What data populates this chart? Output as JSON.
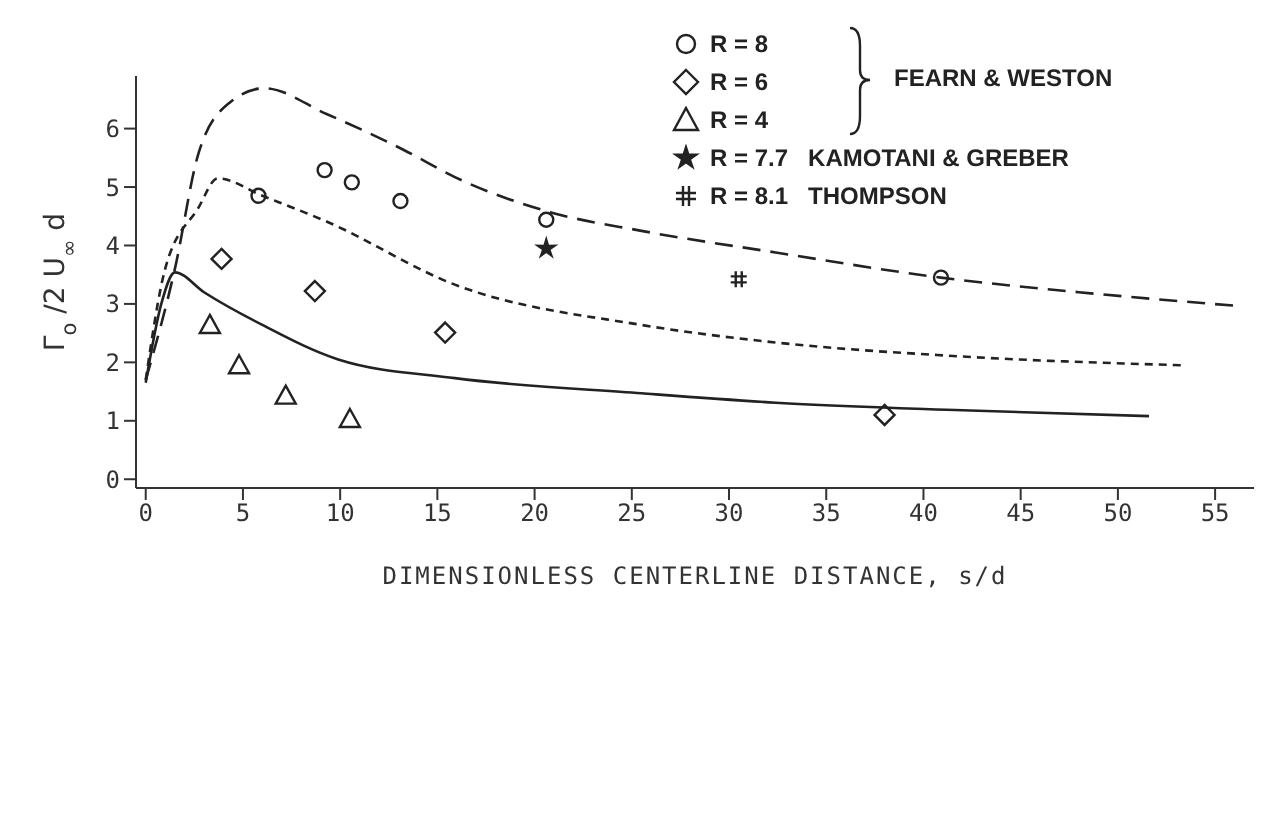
{
  "chart_data": {
    "type": "scatter",
    "xlabel": "DIMENSIONLESS CENTERLINE DISTANCE, s/d",
    "ylabel": "Γ$_{o}$ /2 U$_{∞}$ d",
    "xlim": [
      -0.5,
      57
    ],
    "xticks": [
      0,
      5,
      10,
      15,
      20,
      25,
      30,
      35,
      40,
      45,
      50,
      55
    ],
    "ylim": [
      -0.15,
      6.9
    ],
    "yticks": [
      0,
      1,
      2,
      3,
      4,
      5,
      6
    ],
    "legend": "top right",
    "annotations": [
      "FEARN & WESTON"
    ],
    "series": [
      {
        "name": "R = 8",
        "marker": "circle",
        "color": "#222222",
        "x": [
          5.8,
          9.2,
          10.6,
          13.1,
          20.6,
          40.9
        ],
        "values": [
          4.85,
          5.29,
          5.08,
          4.76,
          4.44,
          3.45
        ]
      },
      {
        "name": "R = 6",
        "marker": "diamond",
        "color": "#222222",
        "x": [
          3.9,
          8.7,
          15.4,
          38.0
        ],
        "values": [
          3.77,
          3.22,
          2.51,
          1.1
        ]
      },
      {
        "name": "R = 4",
        "marker": "triangle",
        "color": "#222222",
        "x": [
          3.3,
          4.8,
          7.2,
          10.5
        ],
        "values": [
          2.64,
          1.95,
          1.43,
          1.03
        ]
      },
      {
        "name": "R = 7.7   KAMOTANI & GREBER",
        "marker": "star",
        "color": "#222222",
        "x": [
          20.6
        ],
        "values": [
          3.95
        ]
      },
      {
        "name": "R = 8.1   THOMPSON",
        "marker": "cross",
        "color": "#222222",
        "x": [
          30.5
        ],
        "values": [
          3.42
        ]
      },
      {
        "type": "line",
        "line_style": "dashed",
        "marker": "none",
        "color": "#222222",
        "x": [
          0,
          1.5,
          2.7,
          4.3,
          6.1,
          9.3,
          13.3,
          15.9,
          20.8,
          25.5,
          32.4,
          40.9,
          48,
          56
        ],
        "values": [
          1.7,
          3.6,
          5.56,
          6.44,
          6.69,
          6.25,
          5.63,
          5.17,
          4.57,
          4.25,
          3.88,
          3.45,
          3.2,
          2.97
        ]
      },
      {
        "type": "line",
        "line_style": "dotted",
        "marker": "none",
        "color": "#222222",
        "x": [
          0,
          1,
          2.7,
          3.7,
          6,
          9.3,
          15.9,
          25.5,
          32.4,
          42,
          53.3
        ],
        "values": [
          1.7,
          3.6,
          4.64,
          5.15,
          4.85,
          4.41,
          3.33,
          2.64,
          2.34,
          2.1,
          1.95
        ]
      },
      {
        "type": "line",
        "line_style": "solid",
        "marker": "none",
        "color": "#222222",
        "x": [
          0,
          0.8,
          1.5,
          3,
          6,
          9.9,
          15.9,
          25.5,
          32.4,
          42,
          51.6
        ],
        "values": [
          1.65,
          3.0,
          3.54,
          3.2,
          2.64,
          2.05,
          1.73,
          1.47,
          1.31,
          1.18,
          1.08
        ]
      }
    ]
  }
}
